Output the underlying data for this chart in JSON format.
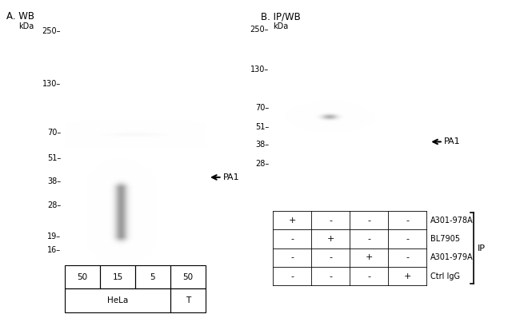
{
  "fig_width": 6.5,
  "fig_height": 4.03,
  "dpi": 100,
  "bg_color": "#ffffff",
  "panel_A_title": "A. WB",
  "panel_B_title": "B. IP/WB",
  "kda_label": "kDa",
  "mw_markers_A": [
    250,
    130,
    70,
    51,
    38,
    28,
    19,
    16
  ],
  "mw_markers_B": [
    250,
    130,
    70,
    51,
    38,
    28
  ],
  "arrow_label": "PA1",
  "arrow_mw": 40,
  "panel_A_lanes": [
    "50",
    "15",
    "5",
    "50"
  ],
  "panel_A_group_labels": [
    "HeLa",
    "T"
  ],
  "panel_B_row1": [
    "+",
    "-",
    "-",
    "-"
  ],
  "panel_B_row2": [
    "-",
    "+",
    "-",
    "-"
  ],
  "panel_B_row3": [
    "-",
    "-",
    "+",
    "-"
  ],
  "panel_B_row4": [
    "-",
    "-",
    "-",
    "+"
  ],
  "panel_B_antibodies": [
    "A301-978A",
    "BL7905",
    "A301-979A",
    "Ctrl IgG"
  ],
  "ip_label": "IP",
  "text_color": "#000000"
}
